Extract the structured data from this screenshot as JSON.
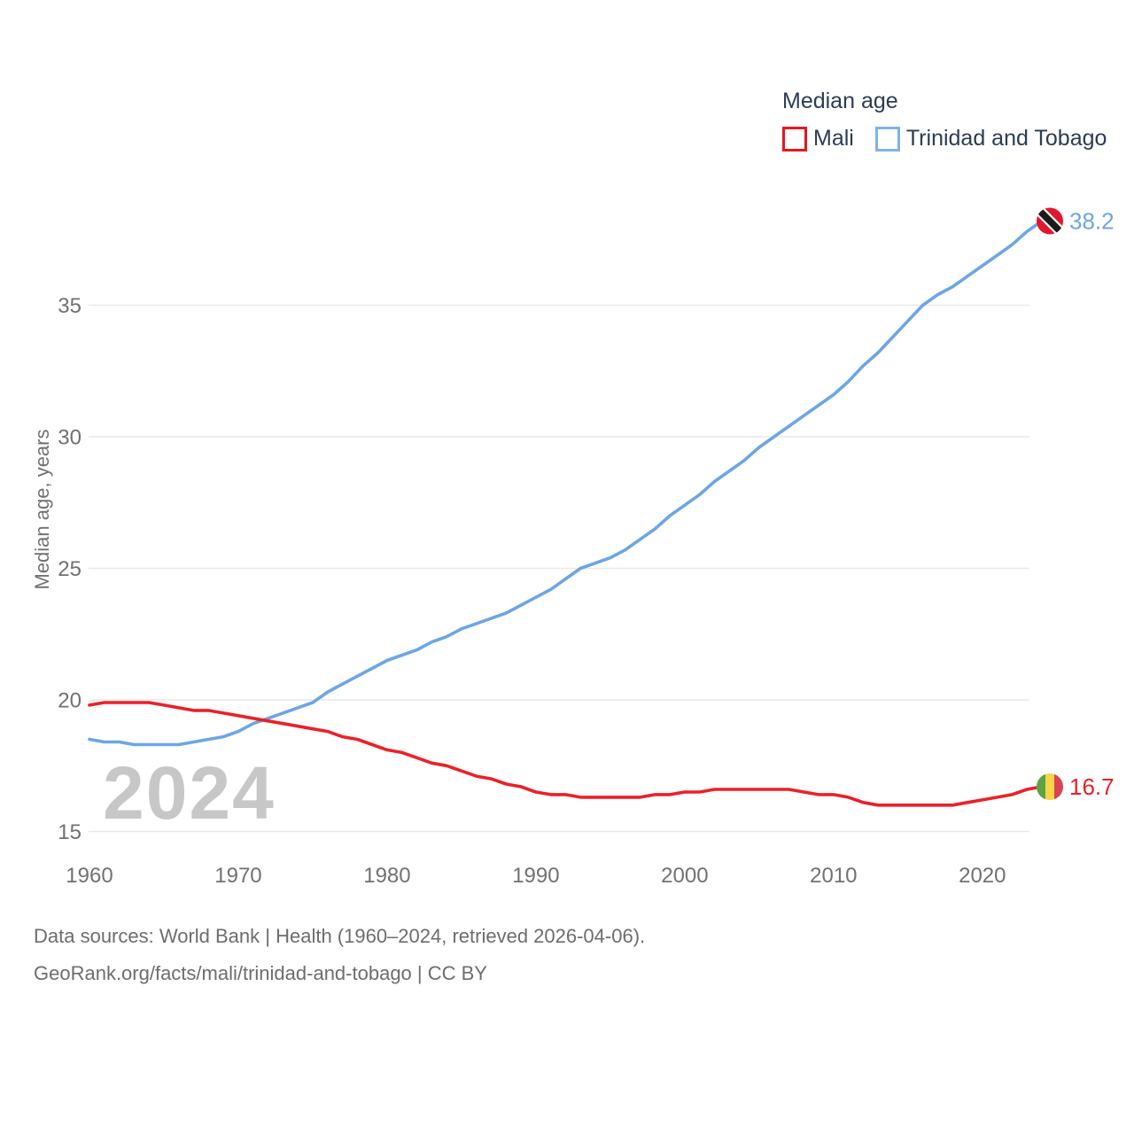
{
  "legend": {
    "title": "Median age",
    "items": [
      {
        "label": "Mali",
        "color": "#e8161d"
      },
      {
        "label": "Trinidad and Tobago",
        "color": "#7db3ea"
      }
    ]
  },
  "watermark": "2024",
  "chart_data": {
    "type": "line",
    "title": "Median age",
    "xlabel": "",
    "ylabel": "Median age, years",
    "xlim": [
      1960,
      2024
    ],
    "ylim": [
      15,
      39
    ],
    "x_ticks": [
      1960,
      1970,
      1980,
      1990,
      2000,
      2010,
      2020
    ],
    "y_ticks": [
      15,
      20,
      25,
      30,
      35
    ],
    "grid": "horizontal",
    "legend_position": "top-right",
    "x": [
      1960,
      1961,
      1962,
      1963,
      1964,
      1965,
      1966,
      1967,
      1968,
      1969,
      1970,
      1971,
      1972,
      1973,
      1974,
      1975,
      1976,
      1977,
      1978,
      1979,
      1980,
      1981,
      1982,
      1983,
      1984,
      1985,
      1986,
      1987,
      1988,
      1989,
      1990,
      1991,
      1992,
      1993,
      1994,
      1995,
      1996,
      1997,
      1998,
      1999,
      2000,
      2001,
      2002,
      2003,
      2004,
      2005,
      2006,
      2007,
      2008,
      2009,
      2010,
      2011,
      2012,
      2013,
      2014,
      2015,
      2016,
      2017,
      2018,
      2019,
      2020,
      2021,
      2022,
      2023,
      2024
    ],
    "series": [
      {
        "name": "Mali",
        "slug": "mali",
        "color": "#ec2028",
        "end_label": "16.7",
        "values": [
          19.8,
          19.9,
          19.9,
          19.9,
          19.9,
          19.8,
          19.7,
          19.6,
          19.6,
          19.5,
          19.4,
          19.3,
          19.2,
          19.1,
          19.0,
          18.9,
          18.8,
          18.6,
          18.5,
          18.3,
          18.1,
          18.0,
          17.8,
          17.6,
          17.5,
          17.3,
          17.1,
          17.0,
          16.8,
          16.7,
          16.5,
          16.4,
          16.4,
          16.3,
          16.3,
          16.3,
          16.3,
          16.3,
          16.4,
          16.4,
          16.5,
          16.5,
          16.6,
          16.6,
          16.6,
          16.6,
          16.6,
          16.6,
          16.5,
          16.4,
          16.4,
          16.3,
          16.1,
          16.0,
          16.0,
          16.0,
          16.0,
          16.0,
          16.0,
          16.1,
          16.2,
          16.3,
          16.4,
          16.6,
          16.7
        ]
      },
      {
        "name": "Trinidad and Tobago",
        "slug": "trinidad-and-tobago",
        "color": "#6da6e3",
        "end_label": "38.2",
        "values": [
          18.5,
          18.4,
          18.4,
          18.3,
          18.3,
          18.3,
          18.3,
          18.4,
          18.5,
          18.6,
          18.8,
          19.1,
          19.3,
          19.5,
          19.7,
          19.9,
          20.3,
          20.6,
          20.9,
          21.2,
          21.5,
          21.7,
          21.9,
          22.2,
          22.4,
          22.7,
          22.9,
          23.1,
          23.3,
          23.6,
          23.9,
          24.2,
          24.6,
          25.0,
          25.2,
          25.4,
          25.7,
          26.1,
          26.5,
          27.0,
          27.4,
          27.8,
          28.3,
          28.7,
          29.1,
          29.6,
          30.0,
          30.4,
          30.8,
          31.2,
          31.6,
          32.1,
          32.7,
          33.2,
          33.8,
          34.4,
          35.0,
          35.4,
          35.7,
          36.1,
          36.5,
          36.9,
          37.3,
          37.8,
          38.2
        ]
      }
    ]
  },
  "flags": {
    "mali": {
      "green": "#5ba443",
      "yellow": "#f6d44b",
      "red": "#d84450"
    },
    "trinidad_and_tobago": {
      "red": "#e01730",
      "black": "#1b1b1b",
      "white": "#ffffff"
    }
  },
  "colors": {
    "grid": "#e9e9e9",
    "tick_text": "#717171",
    "watermark": "#c7c7c7",
    "legend_text": "#2c3c52",
    "footer_text": "#6d6d6d",
    "background": "#ffffff"
  },
  "footer": {
    "line1": "Data sources: World Bank | Health (1960–2024, retrieved 2026-04-06).",
    "line2": "GeoRank.org/facts/mali/trinidad-and-tobago | CC BY"
  }
}
